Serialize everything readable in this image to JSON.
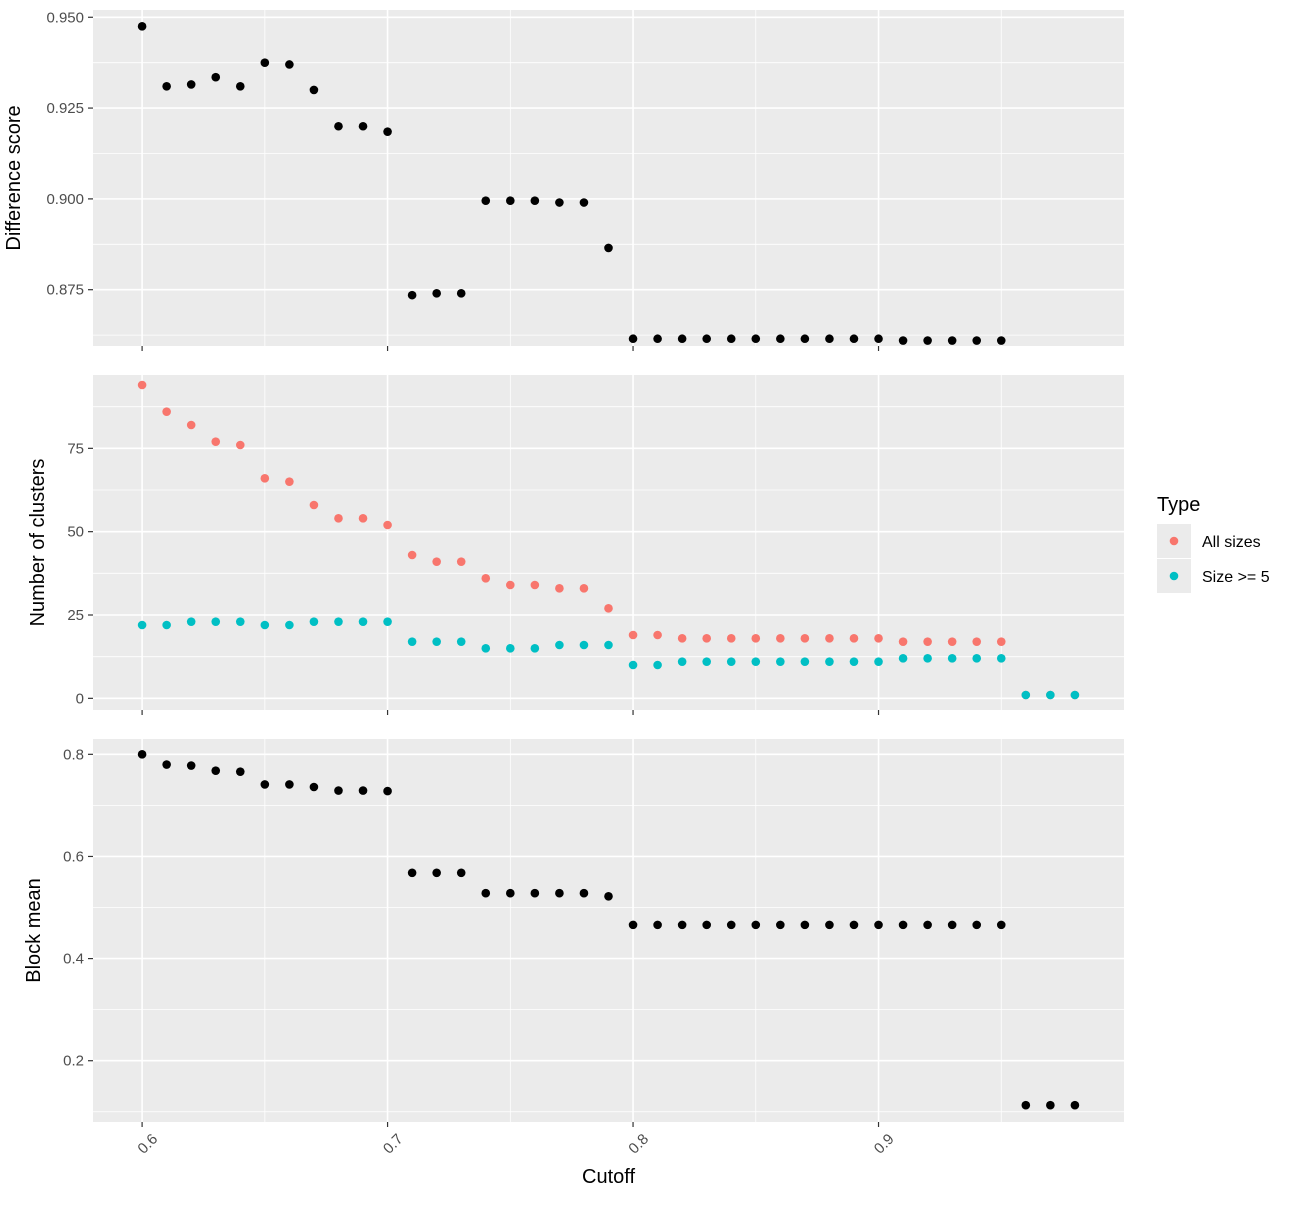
{
  "colors": {
    "panel_bg": "#EBEBEB",
    "grid": "#FFFFFF",
    "tick": "#333333",
    "black_points": "#000000",
    "all_sizes": "#F8766D",
    "size_ge_5": "#00BFC4"
  },
  "x_axis": {
    "label": "Cutoff",
    "ticks": [
      0.6,
      0.7,
      0.8,
      0.9
    ],
    "tick_labels": [
      "0.6",
      "0.7",
      "0.8",
      "0.9"
    ],
    "range": [
      0.58,
      1.0
    ],
    "tick_label_rotation": "45 degrees"
  },
  "legend": {
    "title": "Type",
    "placement": "right",
    "items": [
      {
        "label": "All sizes",
        "color": "#F8766D"
      },
      {
        "label": "Size >= 5",
        "color": "#00BFC4"
      }
    ]
  },
  "chart_data": [
    {
      "type": "scatter",
      "ylabel": "Difference score",
      "ylim": [
        0.8595,
        0.952
      ],
      "yticks": [
        0.875,
        0.9,
        0.925,
        0.95
      ],
      "ytick_labels": [
        "0.875",
        "0.900",
        "0.925",
        "0.950"
      ],
      "grid": true,
      "series": [
        {
          "color": "#000000",
          "points": [
            [
              0.6,
              0.9475
            ],
            [
              0.61,
              0.931
            ],
            [
              0.62,
              0.9315
            ],
            [
              0.63,
              0.9335
            ],
            [
              0.64,
              0.931
            ],
            [
              0.65,
              0.9375
            ],
            [
              0.66,
              0.937
            ],
            [
              0.67,
              0.93
            ],
            [
              0.68,
              0.92
            ],
            [
              0.69,
              0.92
            ],
            [
              0.7,
              0.9185
            ],
            [
              0.71,
              0.8735
            ],
            [
              0.72,
              0.874
            ],
            [
              0.73,
              0.874
            ],
            [
              0.74,
              0.8995
            ],
            [
              0.75,
              0.8995
            ],
            [
              0.76,
              0.8995
            ],
            [
              0.77,
              0.899
            ],
            [
              0.78,
              0.899
            ],
            [
              0.79,
              0.8865
            ],
            [
              0.8,
              0.8615
            ],
            [
              0.81,
              0.8615
            ],
            [
              0.82,
              0.8615
            ],
            [
              0.83,
              0.8615
            ],
            [
              0.84,
              0.8615
            ],
            [
              0.85,
              0.8615
            ],
            [
              0.86,
              0.8615
            ],
            [
              0.87,
              0.8615
            ],
            [
              0.88,
              0.8615
            ],
            [
              0.89,
              0.8615
            ],
            [
              0.9,
              0.8615
            ],
            [
              0.91,
              0.861
            ],
            [
              0.92,
              0.861
            ],
            [
              0.93,
              0.861
            ],
            [
              0.94,
              0.861
            ],
            [
              0.95,
              0.861
            ]
          ]
        }
      ]
    },
    {
      "type": "scatter",
      "ylabel": "Number of clusters",
      "ylim": [
        -3.5,
        97
      ],
      "yticks": [
        0,
        25,
        50,
        75
      ],
      "ytick_labels": [
        "0",
        "25",
        "50",
        "75"
      ],
      "grid": true,
      "series": [
        {
          "name": "All sizes",
          "color": "#F8766D",
          "points": [
            [
              0.6,
              94
            ],
            [
              0.61,
              86
            ],
            [
              0.62,
              82
            ],
            [
              0.63,
              77
            ],
            [
              0.64,
              76
            ],
            [
              0.65,
              66
            ],
            [
              0.66,
              65
            ],
            [
              0.67,
              58
            ],
            [
              0.68,
              54
            ],
            [
              0.69,
              54
            ],
            [
              0.7,
              52
            ],
            [
              0.71,
              43
            ],
            [
              0.72,
              41
            ],
            [
              0.73,
              41
            ],
            [
              0.74,
              36
            ],
            [
              0.75,
              34
            ],
            [
              0.76,
              34
            ],
            [
              0.77,
              33
            ],
            [
              0.78,
              33
            ],
            [
              0.79,
              27
            ],
            [
              0.8,
              19
            ],
            [
              0.81,
              19
            ],
            [
              0.82,
              18
            ],
            [
              0.83,
              18
            ],
            [
              0.84,
              18
            ],
            [
              0.85,
              18
            ],
            [
              0.86,
              18
            ],
            [
              0.87,
              18
            ],
            [
              0.88,
              18
            ],
            [
              0.89,
              18
            ],
            [
              0.9,
              18
            ],
            [
              0.91,
              17
            ],
            [
              0.92,
              17
            ],
            [
              0.93,
              17
            ],
            [
              0.94,
              17
            ],
            [
              0.95,
              17
            ],
            [
              0.96,
              1
            ],
            [
              0.97,
              1
            ],
            [
              0.98,
              1
            ]
          ]
        },
        {
          "name": "Size >= 5",
          "color": "#00BFC4",
          "points": [
            [
              0.6,
              22
            ],
            [
              0.61,
              22
            ],
            [
              0.62,
              23
            ],
            [
              0.63,
              23
            ],
            [
              0.64,
              23
            ],
            [
              0.65,
              22
            ],
            [
              0.66,
              22
            ],
            [
              0.67,
              23
            ],
            [
              0.68,
              23
            ],
            [
              0.69,
              23
            ],
            [
              0.7,
              23
            ],
            [
              0.71,
              17
            ],
            [
              0.72,
              17
            ],
            [
              0.73,
              17
            ],
            [
              0.74,
              15
            ],
            [
              0.75,
              15
            ],
            [
              0.76,
              15
            ],
            [
              0.77,
              16
            ],
            [
              0.78,
              16
            ],
            [
              0.79,
              16
            ],
            [
              0.8,
              10
            ],
            [
              0.81,
              10
            ],
            [
              0.82,
              11
            ],
            [
              0.83,
              11
            ],
            [
              0.84,
              11
            ],
            [
              0.85,
              11
            ],
            [
              0.86,
              11
            ],
            [
              0.87,
              11
            ],
            [
              0.88,
              11
            ],
            [
              0.89,
              11
            ],
            [
              0.9,
              11
            ],
            [
              0.91,
              12
            ],
            [
              0.92,
              12
            ],
            [
              0.93,
              12
            ],
            [
              0.94,
              12
            ],
            [
              0.95,
              12
            ],
            [
              0.96,
              1
            ],
            [
              0.97,
              1
            ],
            [
              0.98,
              1
            ]
          ]
        }
      ]
    },
    {
      "type": "scatter",
      "ylabel": "Block mean",
      "ylim": [
        0.08,
        0.83
      ],
      "yticks": [
        0.2,
        0.4,
        0.6,
        0.8
      ],
      "ytick_labels": [
        "0.2",
        "0.4",
        "0.6",
        "0.8"
      ],
      "grid": true,
      "series": [
        {
          "color": "#000000",
          "points": [
            [
              0.6,
              0.8
            ],
            [
              0.61,
              0.78
            ],
            [
              0.62,
              0.778
            ],
            [
              0.63,
              0.768
            ],
            [
              0.64,
              0.766
            ],
            [
              0.65,
              0.741
            ],
            [
              0.66,
              0.741
            ],
            [
              0.67,
              0.736
            ],
            [
              0.68,
              0.729
            ],
            [
              0.69,
              0.729
            ],
            [
              0.7,
              0.728
            ],
            [
              0.71,
              0.568
            ],
            [
              0.72,
              0.568
            ],
            [
              0.73,
              0.568
            ],
            [
              0.74,
              0.528
            ],
            [
              0.75,
              0.528
            ],
            [
              0.76,
              0.528
            ],
            [
              0.77,
              0.528
            ],
            [
              0.78,
              0.528
            ],
            [
              0.79,
              0.522
            ],
            [
              0.8,
              0.466
            ],
            [
              0.81,
              0.466
            ],
            [
              0.82,
              0.466
            ],
            [
              0.83,
              0.466
            ],
            [
              0.84,
              0.466
            ],
            [
              0.85,
              0.466
            ],
            [
              0.86,
              0.466
            ],
            [
              0.87,
              0.466
            ],
            [
              0.88,
              0.466
            ],
            [
              0.89,
              0.466
            ],
            [
              0.9,
              0.466
            ],
            [
              0.91,
              0.466
            ],
            [
              0.92,
              0.466
            ],
            [
              0.93,
              0.466
            ],
            [
              0.94,
              0.466
            ],
            [
              0.95,
              0.466
            ],
            [
              0.96,
              0.113
            ],
            [
              0.97,
              0.113
            ],
            [
              0.98,
              0.113
            ]
          ]
        }
      ]
    }
  ]
}
